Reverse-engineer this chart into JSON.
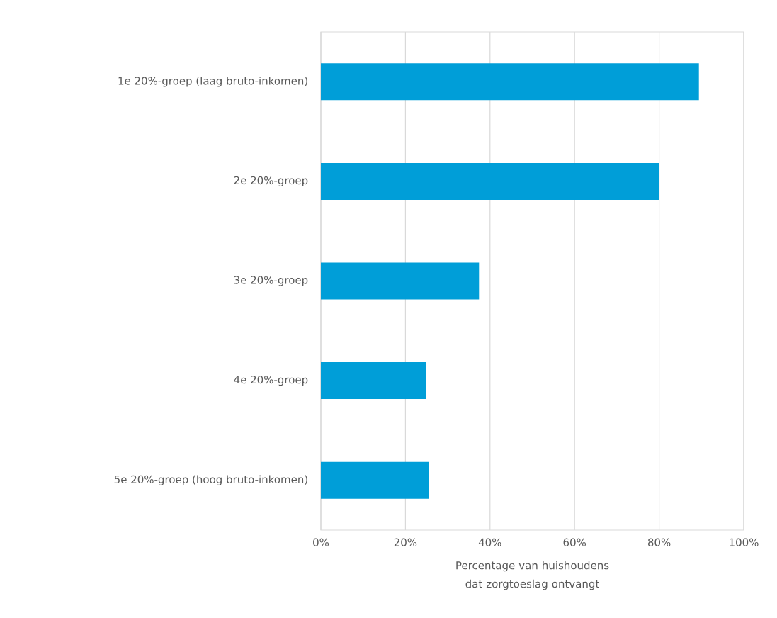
{
  "chart_data": {
    "type": "bar",
    "orientation": "horizontal",
    "categories": [
      "1e 20%-groep (laag bruto-inkomen)",
      "2e 20%-groep",
      "3e 20%-groep",
      "4e 20%-groep",
      "5e 20%-groep (hoog bruto-inkomen)"
    ],
    "values": [
      89.4,
      80,
      37.4,
      24.8,
      25.5
    ],
    "color": "#009ed8",
    "xlabel": "Percentage van huishoudens dat zorgtoeslag ontvangt",
    "xlim": [
      0,
      100
    ],
    "xticks": [
      {
        "value": 0,
        "label": "0%"
      },
      {
        "value": 20,
        "label": "20%"
      },
      {
        "value": 40,
        "label": "40%"
      },
      {
        "value": 60,
        "label": "60%"
      },
      {
        "value": 80,
        "label": "80%"
      },
      {
        "value": 100,
        "label": "100%"
      }
    ],
    "grid": "x"
  }
}
